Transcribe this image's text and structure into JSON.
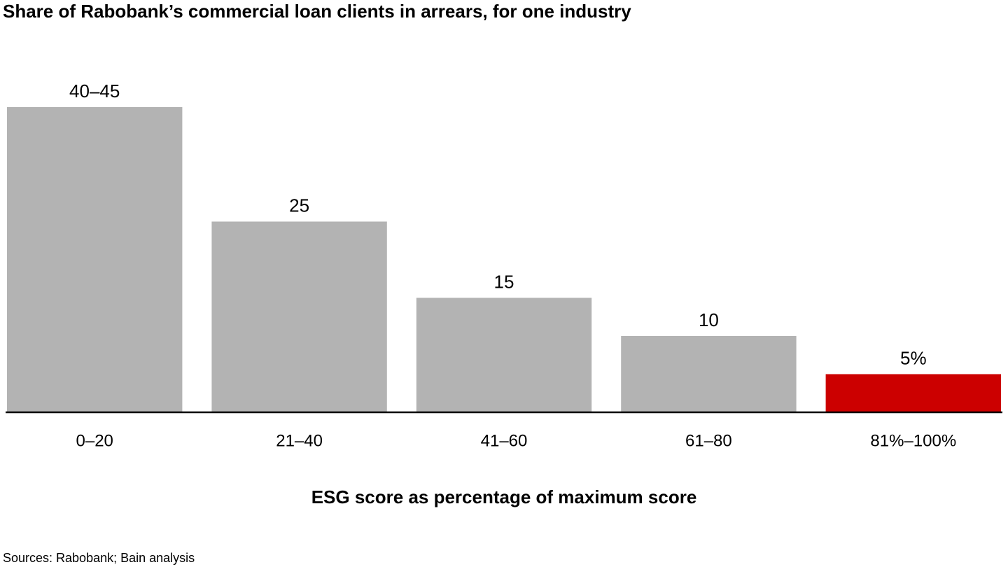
{
  "chart_data": {
    "type": "bar",
    "title": "Share of Rabobank’s commercial loan clients in arrears, for one industry",
    "x_label": "ESG score as percentage of maximum score",
    "source": "Sources: Rabobank; Bain analysis",
    "categories": [
      "0–20",
      "21–40",
      "41–60",
      "61–80",
      "81%–100%"
    ],
    "values": [
      40,
      25,
      15,
      10,
      5
    ],
    "value_labels": [
      "40–45",
      "25",
      "15",
      "10",
      "5%"
    ],
    "colors": [
      "#b3b3b3",
      "#b3b3b3",
      "#b3b3b3",
      "#b3b3b3",
      "#cc0000"
    ]
  }
}
